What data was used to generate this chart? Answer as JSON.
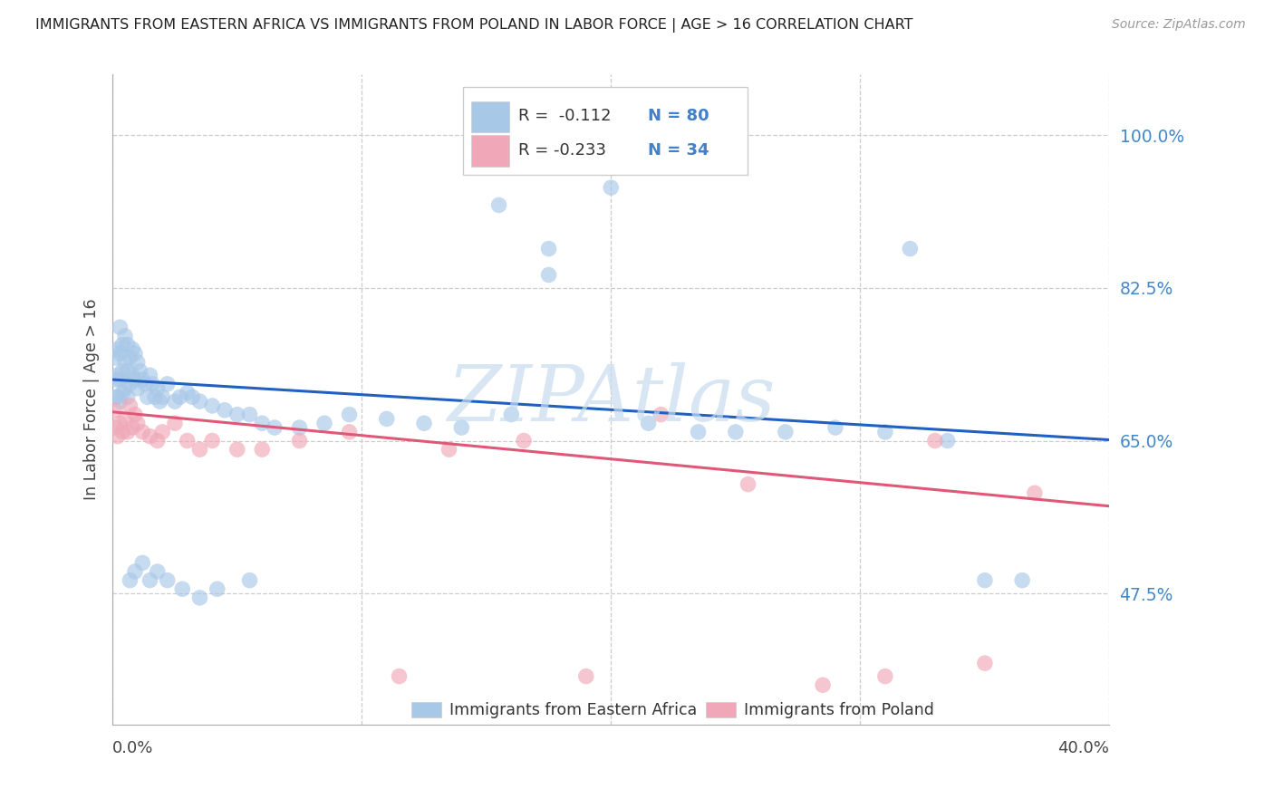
{
  "title": "IMMIGRANTS FROM EASTERN AFRICA VS IMMIGRANTS FROM POLAND IN LABOR FORCE | AGE > 16 CORRELATION CHART",
  "source": "Source: ZipAtlas.com",
  "ylabel": "In Labor Force | Age > 16",
  "ytick_vals": [
    0.475,
    0.65,
    0.825,
    1.0
  ],
  "ytick_labels": [
    "47.5%",
    "65.0%",
    "82.5%",
    "100.0%"
  ],
  "xtick_vals": [
    0.0,
    0.1,
    0.2,
    0.3,
    0.4
  ],
  "xlim": [
    0.0,
    0.4
  ],
  "ylim": [
    0.325,
    1.07
  ],
  "color_blue": "#A8C8E8",
  "color_pink": "#F0A8B8",
  "line_color_blue": "#2060C0",
  "line_color_pink": "#E05878",
  "right_axis_color": "#4488CC",
  "watermark": "ZIPAtlas",
  "watermark_color": "#C8DCF0",
  "legend_text_color": "#333333",
  "legend_val_color": "#4080CC",
  "legend_r1": "R =  -0.112",
  "legend_n1": "N = 80",
  "legend_r2": "R = -0.233",
  "legend_n2": "N = 34",
  "legend_label_blue": "Immigrants from Eastern Africa",
  "legend_label_pink": "Immigrants from Poland",
  "blue_line_y0": 0.72,
  "blue_line_y1": 0.651,
  "pink_line_y0": 0.683,
  "pink_line_y1": 0.575,
  "blue_x": [
    0.001,
    0.001,
    0.001,
    0.002,
    0.002,
    0.002,
    0.003,
    0.003,
    0.003,
    0.003,
    0.004,
    0.004,
    0.004,
    0.005,
    0.005,
    0.005,
    0.006,
    0.006,
    0.006,
    0.007,
    0.007,
    0.008,
    0.008,
    0.009,
    0.009,
    0.01,
    0.01,
    0.011,
    0.012,
    0.013,
    0.014,
    0.015,
    0.016,
    0.017,
    0.018,
    0.019,
    0.02,
    0.022,
    0.025,
    0.027,
    0.03,
    0.032,
    0.035,
    0.04,
    0.045,
    0.05,
    0.055,
    0.06,
    0.065,
    0.075,
    0.085,
    0.095,
    0.11,
    0.125,
    0.14,
    0.16,
    0.175,
    0.2,
    0.215,
    0.235,
    0.25,
    0.27,
    0.155,
    0.175,
    0.29,
    0.31,
    0.32,
    0.335,
    0.35,
    0.365,
    0.007,
    0.009,
    0.012,
    0.015,
    0.018,
    0.022,
    0.028,
    0.035,
    0.042,
    0.055
  ],
  "blue_y": [
    0.7,
    0.72,
    0.745,
    0.7,
    0.725,
    0.755,
    0.695,
    0.72,
    0.75,
    0.78,
    0.705,
    0.73,
    0.76,
    0.71,
    0.74,
    0.77,
    0.7,
    0.73,
    0.76,
    0.715,
    0.745,
    0.725,
    0.755,
    0.72,
    0.75,
    0.71,
    0.74,
    0.73,
    0.72,
    0.715,
    0.7,
    0.725,
    0.715,
    0.7,
    0.71,
    0.695,
    0.7,
    0.715,
    0.695,
    0.7,
    0.705,
    0.7,
    0.695,
    0.69,
    0.685,
    0.68,
    0.68,
    0.67,
    0.665,
    0.665,
    0.67,
    0.68,
    0.675,
    0.67,
    0.665,
    0.68,
    0.84,
    0.94,
    0.67,
    0.66,
    0.66,
    0.66,
    0.92,
    0.87,
    0.665,
    0.66,
    0.87,
    0.65,
    0.49,
    0.49,
    0.49,
    0.5,
    0.51,
    0.49,
    0.5,
    0.49,
    0.48,
    0.47,
    0.48,
    0.49
  ],
  "pink_x": [
    0.001,
    0.001,
    0.002,
    0.003,
    0.004,
    0.005,
    0.006,
    0.007,
    0.008,
    0.009,
    0.01,
    0.012,
    0.015,
    0.018,
    0.02,
    0.025,
    0.03,
    0.035,
    0.04,
    0.05,
    0.06,
    0.075,
    0.095,
    0.115,
    0.135,
    0.165,
    0.19,
    0.22,
    0.255,
    0.285,
    0.31,
    0.33,
    0.35,
    0.37
  ],
  "pink_y": [
    0.665,
    0.685,
    0.655,
    0.67,
    0.66,
    0.675,
    0.66,
    0.69,
    0.665,
    0.68,
    0.67,
    0.66,
    0.655,
    0.65,
    0.66,
    0.67,
    0.65,
    0.64,
    0.65,
    0.64,
    0.64,
    0.65,
    0.66,
    0.38,
    0.64,
    0.65,
    0.38,
    0.68,
    0.6,
    0.37,
    0.38,
    0.65,
    0.395,
    0.59
  ]
}
